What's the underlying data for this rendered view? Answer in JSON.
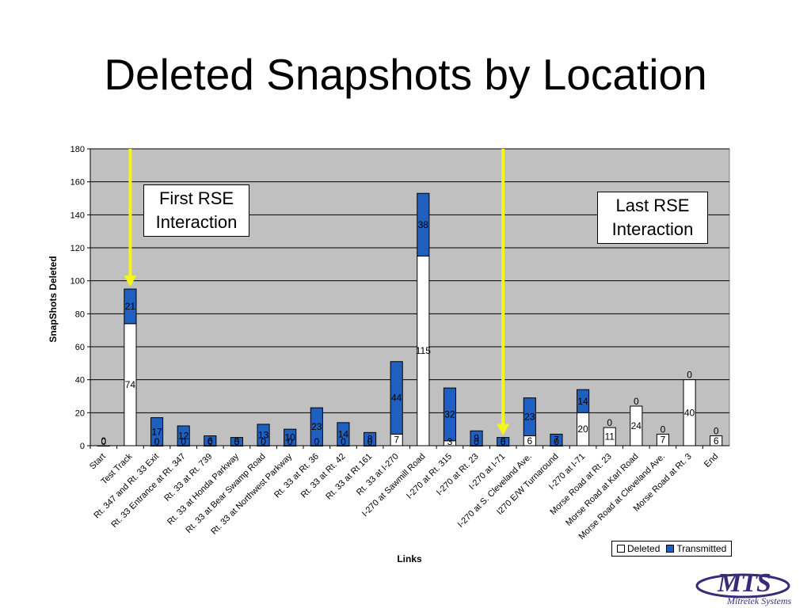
{
  "slide": {
    "title": "Deleted Snapshots by Location"
  },
  "callouts": {
    "first": "First RSE\nInteraction",
    "last": "Last RSE\nInteraction"
  },
  "logo": {
    "text": "MTS",
    "subtitle": "Mitretek Systems"
  },
  "colors": {
    "deleted": "#ffffff",
    "transmitted": "#1f5fbf",
    "plot_bg": "#c0c0c0",
    "arrow": "#f5f51a",
    "logo": "#3a2a7a"
  },
  "chart_data": {
    "type": "bar",
    "stacked": true,
    "xlabel": "Links",
    "ylabel": "SnapShots Deleted",
    "ylim": [
      0,
      180
    ],
    "yticks": [
      0,
      20,
      40,
      60,
      80,
      100,
      120,
      140,
      160,
      180
    ],
    "grid": true,
    "legend_position": "bottom-right",
    "categories": [
      "Start",
      "Test Track",
      "Rt. 347 and Rt. 33 Exit",
      "Rt. 33 Entrance at Rt. 347",
      "Rt. 33 at Rt. 739",
      "Rt. 33 at Honda Parkway",
      "Rt. 33 at Bear Swamp Road",
      "Rt. 33 at Northwest Parkway",
      "Rt. 33 at Rt. 36",
      "Rt. 33 at Rt. 42",
      "Rt. 33 at Rt 161",
      "Rt. 33 at I-270",
      "I-270 at Sawmill Road",
      "I-270 at Rt. 315",
      "I-270 at Rt. 23",
      "I-270 at I-71",
      "I-270 at S. Cleveland Ave.",
      "I270 E/W Turnaround",
      "I-270 at I-71",
      "Morse Road at Rt. 23",
      "Morse Road at Karl Road",
      "Morse Road at Cleveland Ave.",
      "Morse Road at Rt. 3",
      "End"
    ],
    "series": [
      {
        "name": "Deleted",
        "values": [
          0,
          74,
          0,
          0,
          0,
          0,
          0,
          0,
          0,
          0,
          0,
          7,
          115,
          3,
          0,
          0,
          6,
          0,
          20,
          11,
          24,
          7,
          40,
          6
        ]
      },
      {
        "name": "Transmitted",
        "values": [
          0,
          21,
          17,
          12,
          6,
          5,
          13,
          10,
          23,
          14,
          8,
          44,
          38,
          32,
          9,
          5,
          23,
          7,
          14,
          0,
          0,
          0,
          0,
          0
        ]
      }
    ],
    "annotations": [
      {
        "text": "First RSE Interaction",
        "category": "Test Track"
      },
      {
        "text": "Last RSE Interaction",
        "category": "I-270 at I-71"
      }
    ]
  }
}
